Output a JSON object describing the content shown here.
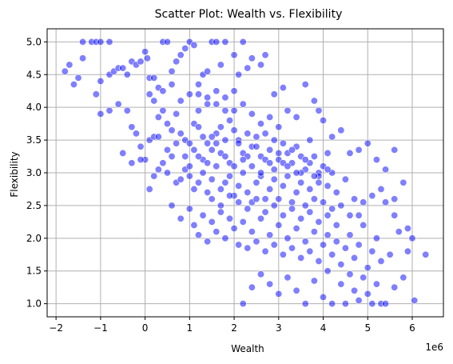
{
  "chart_data": {
    "type": "scatter",
    "title": "Scatter Plot: Wealth vs. Flexibility",
    "xlabel": "Wealth",
    "ylabel": "Flexibility",
    "x_offset_label": "1e6",
    "xlim": [
      -2200000,
      6700000
    ],
    "ylim": [
      0.8,
      5.2
    ],
    "xticks": [
      -2,
      -1,
      0,
      1,
      2,
      3,
      4,
      5,
      6
    ],
    "yticks": [
      1.0,
      1.5,
      2.0,
      2.5,
      3.0,
      3.5,
      4.0,
      4.5,
      5.0
    ],
    "xtick_labels": [
      "−2",
      "−1",
      "0",
      "1",
      "2",
      "3",
      "4",
      "5",
      "6"
    ],
    "ytick_labels": [
      "1.0",
      "1.5",
      "2.0",
      "2.5",
      "3.0",
      "3.5",
      "4.0",
      "4.5",
      "5.0"
    ],
    "grid": true,
    "colors": {
      "marker_fill": "#0000ff",
      "marker_opacity": 0.5,
      "grid": "#b0b0b0",
      "axis": "#000000"
    },
    "series": [
      {
        "points": [
          [
            -1.8,
            4.55
          ],
          [
            -1.7,
            4.65
          ],
          [
            -1.6,
            4.35
          ],
          [
            -1.5,
            4.45
          ],
          [
            -1.4,
            4.75
          ],
          [
            -1.4,
            5.0
          ],
          [
            -1.2,
            5.0
          ],
          [
            -1.1,
            4.2
          ],
          [
            -1.1,
            5.0
          ],
          [
            -1.0,
            5.0
          ],
          [
            -1.0,
            4.4
          ],
          [
            -0.8,
            4.5
          ],
          [
            -0.8,
            5.0
          ],
          [
            -0.7,
            4.55
          ],
          [
            -0.6,
            4.6
          ],
          [
            -0.5,
            4.6
          ],
          [
            -0.4,
            4.5
          ],
          [
            -0.3,
            4.7
          ],
          [
            -0.2,
            4.65
          ],
          [
            -0.1,
            4.7
          ],
          [
            0.0,
            4.85
          ],
          [
            0.05,
            4.75
          ],
          [
            0.1,
            4.45
          ],
          [
            0.1,
            4.2
          ],
          [
            0.2,
            4.1
          ],
          [
            0.3,
            4.3
          ],
          [
            0.4,
            5.0
          ],
          [
            0.5,
            5.0
          ],
          [
            0.6,
            4.55
          ],
          [
            0.7,
            4.7
          ],
          [
            0.8,
            4.8
          ],
          [
            0.9,
            4.9
          ],
          [
            1.0,
            5.0
          ],
          [
            1.1,
            4.95
          ],
          [
            1.2,
            4.2
          ],
          [
            1.3,
            4.5
          ],
          [
            1.4,
            4.55
          ],
          [
            1.5,
            5.0
          ],
          [
            1.6,
            5.0
          ],
          [
            1.7,
            4.65
          ],
          [
            1.8,
            5.0
          ],
          [
            2.0,
            4.8
          ],
          [
            2.1,
            4.5
          ],
          [
            2.2,
            5.0
          ],
          [
            2.3,
            4.6
          ],
          [
            2.4,
            4.75
          ],
          [
            2.6,
            4.65
          ],
          [
            2.7,
            4.8
          ],
          [
            2.9,
            4.2
          ],
          [
            3.1,
            4.3
          ],
          [
            -1.0,
            3.9
          ],
          [
            -0.8,
            3.95
          ],
          [
            -0.6,
            4.05
          ],
          [
            -0.4,
            3.95
          ],
          [
            -0.3,
            3.7
          ],
          [
            -0.2,
            3.6
          ],
          [
            -0.1,
            3.4
          ],
          [
            0.0,
            3.2
          ],
          [
            0.1,
            3.5
          ],
          [
            0.2,
            3.55
          ],
          [
            0.3,
            3.85
          ],
          [
            0.4,
            3.95
          ],
          [
            0.5,
            3.75
          ],
          [
            0.6,
            3.65
          ],
          [
            0.7,
            3.9
          ],
          [
            0.8,
            3.6
          ],
          [
            0.9,
            3.5
          ],
          [
            1.0,
            3.45
          ],
          [
            1.1,
            3.75
          ],
          [
            1.2,
            3.7
          ],
          [
            1.3,
            3.55
          ],
          [
            1.4,
            3.45
          ],
          [
            1.5,
            3.35
          ],
          [
            1.6,
            3.6
          ],
          [
            1.7,
            3.7
          ],
          [
            1.8,
            3.5
          ],
          [
            1.9,
            3.8
          ],
          [
            2.0,
            3.65
          ],
          [
            2.1,
            3.5
          ],
          [
            2.2,
            3.3
          ],
          [
            2.3,
            3.6
          ],
          [
            2.4,
            3.4
          ],
          [
            2.5,
            3.55
          ],
          [
            2.6,
            3.25
          ],
          [
            2.7,
            3.6
          ],
          [
            2.8,
            3.35
          ],
          [
            2.9,
            3.5
          ],
          [
            3.0,
            3.2
          ],
          [
            3.1,
            3.45
          ],
          [
            3.2,
            3.3
          ],
          [
            3.3,
            3.15
          ],
          [
            3.4,
            3.4
          ],
          [
            3.5,
            3.25
          ],
          [
            3.6,
            3.05
          ],
          [
            3.7,
            3.5
          ],
          [
            3.8,
            3.25
          ],
          [
            3.9,
            3.0
          ],
          [
            4.0,
            3.1
          ],
          [
            4.1,
            3.3
          ],
          [
            4.2,
            3.0
          ],
          [
            -0.5,
            3.3
          ],
          [
            -0.3,
            3.15
          ],
          [
            -0.1,
            3.2
          ],
          [
            0.1,
            2.75
          ],
          [
            0.2,
            2.95
          ],
          [
            0.3,
            3.05
          ],
          [
            0.4,
            3.15
          ],
          [
            0.5,
            3.0
          ],
          [
            0.6,
            3.25
          ],
          [
            0.7,
            2.85
          ],
          [
            0.8,
            2.9
          ],
          [
            0.9,
            3.05
          ],
          [
            1.0,
            2.95
          ],
          [
            1.1,
            2.75
          ],
          [
            1.2,
            2.85
          ],
          [
            1.3,
            3.0
          ],
          [
            1.4,
            2.7
          ],
          [
            1.5,
            2.9
          ],
          [
            1.6,
            3.1
          ],
          [
            1.7,
            2.75
          ],
          [
            1.8,
            2.85
          ],
          [
            1.9,
            2.95
          ],
          [
            2.0,
            2.65
          ],
          [
            2.1,
            2.8
          ],
          [
            2.2,
            3.0
          ],
          [
            2.3,
            2.7
          ],
          [
            2.4,
            2.55
          ],
          [
            2.5,
            2.85
          ],
          [
            2.6,
            2.95
          ],
          [
            2.7,
            2.6
          ],
          [
            2.8,
            2.75
          ],
          [
            2.9,
            2.9
          ],
          [
            3.0,
            2.6
          ],
          [
            3.1,
            2.8
          ],
          [
            3.2,
            2.95
          ],
          [
            3.3,
            2.55
          ],
          [
            3.4,
            2.7
          ],
          [
            3.5,
            2.85
          ],
          [
            3.6,
            2.5
          ],
          [
            3.7,
            2.75
          ],
          [
            3.8,
            2.6
          ],
          [
            3.9,
            2.95
          ],
          [
            4.0,
            2.55
          ],
          [
            4.1,
            2.8
          ],
          [
            4.2,
            2.45
          ],
          [
            4.3,
            2.7
          ],
          [
            4.4,
            2.5
          ],
          [
            4.5,
            2.9
          ],
          [
            4.6,
            2.35
          ],
          [
            4.7,
            2.6
          ],
          [
            0.6,
            2.5
          ],
          [
            0.8,
            2.3
          ],
          [
            1.0,
            2.45
          ],
          [
            1.1,
            2.2
          ],
          [
            1.2,
            2.05
          ],
          [
            1.3,
            2.35
          ],
          [
            1.4,
            1.95
          ],
          [
            1.5,
            2.25
          ],
          [
            1.6,
            2.1
          ],
          [
            1.7,
            2.4
          ],
          [
            1.8,
            2.0
          ],
          [
            1.9,
            2.3
          ],
          [
            2.0,
            2.15
          ],
          [
            2.1,
            1.9
          ],
          [
            2.2,
            2.25
          ],
          [
            2.3,
            1.85
          ],
          [
            2.4,
            2.1
          ],
          [
            2.5,
            1.95
          ],
          [
            2.6,
            2.3
          ],
          [
            2.7,
            1.8
          ],
          [
            2.8,
            2.05
          ],
          [
            2.9,
            1.9
          ],
          [
            3.0,
            2.2
          ],
          [
            3.1,
            1.75
          ],
          [
            3.2,
            2.0
          ],
          [
            3.3,
            1.85
          ],
          [
            3.4,
            2.15
          ],
          [
            3.5,
            1.7
          ],
          [
            3.6,
            1.95
          ],
          [
            3.7,
            1.8
          ],
          [
            3.8,
            2.1
          ],
          [
            3.9,
            1.65
          ],
          [
            4.0,
            1.9
          ],
          [
            4.1,
            2.05
          ],
          [
            4.2,
            1.75
          ],
          [
            4.3,
            1.95
          ],
          [
            4.4,
            1.6
          ],
          [
            4.5,
            1.85
          ],
          [
            4.6,
            2.05
          ],
          [
            4.7,
            1.7
          ],
          [
            4.8,
            1.9
          ],
          [
            4.9,
            2.2
          ],
          [
            5.0,
            1.55
          ],
          [
            5.1,
            1.8
          ],
          [
            5.2,
            2.0
          ],
          [
            5.3,
            1.65
          ],
          [
            5.5,
            1.75
          ],
          [
            5.7,
            2.1
          ],
          [
            5.9,
            1.8
          ],
          [
            6.3,
            1.75
          ],
          [
            2.2,
            1.0
          ],
          [
            2.4,
            1.25
          ],
          [
            2.6,
            1.45
          ],
          [
            2.8,
            1.3
          ],
          [
            3.0,
            1.15
          ],
          [
            3.2,
            1.4
          ],
          [
            3.4,
            1.2
          ],
          [
            3.6,
            1.0
          ],
          [
            3.8,
            1.35
          ],
          [
            4.0,
            1.1
          ],
          [
            4.1,
            1.5
          ],
          [
            4.2,
            1.0
          ],
          [
            4.4,
            1.3
          ],
          [
            4.5,
            1.0
          ],
          [
            4.6,
            1.45
          ],
          [
            4.7,
            1.2
          ],
          [
            4.8,
            1.05
          ],
          [
            4.9,
            1.4
          ],
          [
            5.0,
            1.15
          ],
          [
            5.1,
            1.0
          ],
          [
            5.2,
            1.3
          ],
          [
            5.3,
            1.0
          ],
          [
            5.4,
            1.0
          ],
          [
            5.6,
            1.25
          ],
          [
            5.8,
            1.4
          ],
          [
            6.05,
            1.05
          ],
          [
            5.9,
            2.15
          ],
          [
            6.0,
            2.0
          ],
          [
            5.6,
            2.35
          ],
          [
            5.4,
            2.55
          ],
          [
            1.2,
            3.95
          ],
          [
            1.4,
            4.15
          ],
          [
            1.6,
            4.05
          ],
          [
            1.8,
            3.95
          ],
          [
            2.0,
            4.25
          ],
          [
            2.2,
            4.05
          ],
          [
            2.4,
            3.9
          ],
          [
            2.6,
            3.75
          ],
          [
            2.8,
            3.85
          ],
          [
            3.0,
            3.7
          ],
          [
            3.2,
            3.95
          ],
          [
            3.4,
            3.85
          ],
          [
            3.6,
            4.35
          ],
          [
            3.8,
            4.1
          ],
          [
            3.9,
            3.95
          ],
          [
            4.0,
            3.8
          ],
          [
            4.2,
            3.55
          ],
          [
            4.4,
            3.65
          ],
          [
            4.6,
            3.3
          ],
          [
            4.8,
            3.35
          ],
          [
            5.0,
            3.45
          ],
          [
            5.2,
            3.2
          ],
          [
            5.4,
            3.05
          ],
          [
            5.6,
            3.35
          ],
          [
            5.8,
            2.85
          ],
          [
            5.6,
            2.6
          ],
          [
            5.3,
            2.75
          ],
          [
            5.1,
            2.65
          ],
          [
            4.9,
            2.55
          ],
          [
            4.8,
            2.35
          ],
          [
            0.3,
            3.55
          ],
          [
            0.5,
            3.35
          ],
          [
            0.7,
            3.45
          ],
          [
            0.9,
            3.25
          ],
          [
            1.1,
            3.35
          ],
          [
            1.3,
            3.2
          ],
          [
            1.5,
            3.55
          ],
          [
            1.7,
            3.3
          ],
          [
            1.9,
            3.15
          ],
          [
            2.1,
            3.45
          ],
          [
            2.3,
            3.25
          ],
          [
            2.5,
            3.4
          ],
          [
            2.7,
            3.2
          ],
          [
            2.9,
            3.05
          ],
          [
            3.1,
            3.15
          ],
          [
            3.3,
            3.35
          ],
          [
            3.5,
            3.0
          ],
          [
            3.7,
            3.15
          ],
          [
            3.9,
            2.85
          ],
          [
            4.1,
            3.05
          ],
          [
            0.2,
            4.45
          ],
          [
            0.4,
            4.25
          ],
          [
            0.6,
            4.35
          ],
          [
            0.8,
            4.1
          ],
          [
            1.0,
            4.2
          ],
          [
            1.2,
            4.35
          ],
          [
            1.4,
            4.05
          ],
          [
            1.6,
            4.25
          ],
          [
            1.8,
            4.15
          ],
          [
            2.0,
            3.95
          ],
          [
            1.5,
            2.6
          ],
          [
            1.7,
            2.5
          ],
          [
            1.9,
            2.65
          ],
          [
            2.1,
            2.55
          ],
          [
            2.3,
            2.45
          ],
          [
            2.5,
            2.6
          ],
          [
            2.7,
            2.4
          ],
          [
            2.9,
            2.5
          ],
          [
            3.1,
            2.35
          ],
          [
            3.3,
            2.45
          ],
          [
            3.5,
            2.3
          ],
          [
            3.7,
            2.4
          ],
          [
            3.9,
            2.25
          ],
          [
            4.1,
            2.35
          ],
          [
            4.3,
            2.2
          ],
          [
            2.0,
            3.1
          ],
          [
            2.2,
            3.2
          ],
          [
            2.4,
            3.1
          ],
          [
            2.6,
            3.0
          ],
          [
            2.8,
            3.15
          ],
          [
            3.0,
            3.3
          ],
          [
            3.2,
            3.1
          ],
          [
            3.4,
            3.0
          ],
          [
            3.6,
            3.2
          ],
          [
            3.8,
            2.95
          ],
          [
            1.0,
            3.1
          ],
          [
            1.2,
            3.25
          ],
          [
            1.4,
            3.15
          ],
          [
            1.6,
            3.45
          ],
          [
            1.8,
            3.25
          ]
        ]
      }
    ]
  }
}
